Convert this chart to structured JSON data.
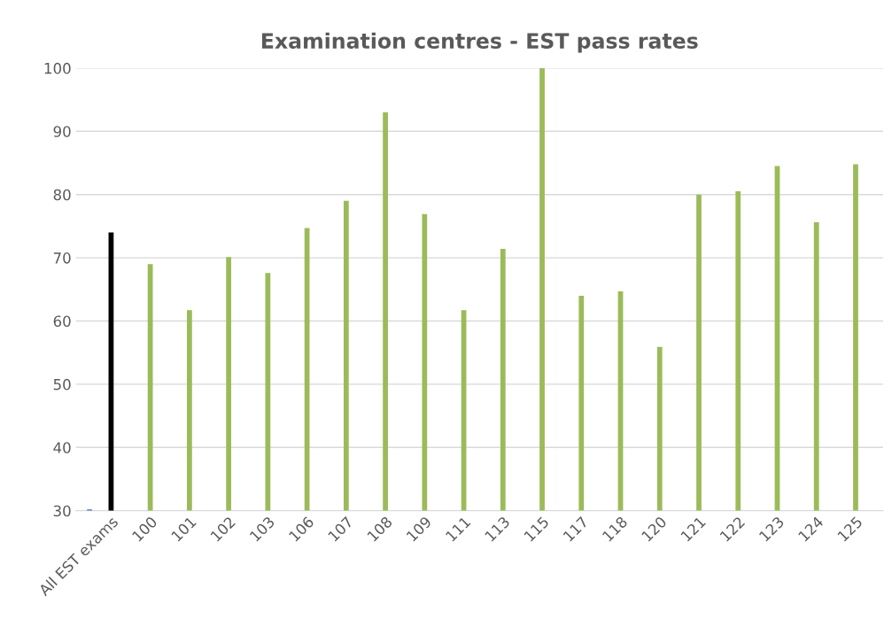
{
  "chart_data": {
    "type": "bar",
    "title": "Examination centres - EST pass rates",
    "categories": [
      "All EST exams",
      "100",
      "101",
      "102",
      "103",
      "106",
      "107",
      "108",
      "109",
      "111",
      "113",
      "115",
      "117",
      "118",
      "120",
      "121",
      "122",
      "123",
      "124",
      "125"
    ],
    "series": [
      {
        "color": "#4472c4",
        "values": [
          30.2,
          null,
          null,
          null,
          null,
          null,
          null,
          null,
          null,
          null,
          null,
          null,
          null,
          null,
          null,
          null,
          null,
          null,
          null,
          null
        ]
      },
      {
        "colors": [
          "#000000",
          "#9bbb59",
          "#9bbb59",
          "#9bbb59",
          "#9bbb59",
          "#9bbb59",
          "#9bbb59",
          "#9bbb59",
          "#9bbb59",
          "#9bbb59",
          "#9bbb59",
          "#9bbb59",
          "#9bbb59",
          "#9bbb59",
          "#9bbb59",
          "#9bbb59",
          "#9bbb59",
          "#9bbb59",
          "#9bbb59",
          "#9bbb59"
        ],
        "values": [
          74,
          69,
          61.7,
          70.1,
          67.6,
          74.7,
          79,
          93,
          76.9,
          61.7,
          71.4,
          100,
          64,
          64.7,
          55.9,
          80,
          80.5,
          84.5,
          75.6,
          84.8
        ]
      }
    ],
    "ylim": [
      30,
      100
    ],
    "yticks": [
      30,
      40,
      50,
      60,
      70,
      80,
      90,
      100
    ],
    "grid": "y"
  }
}
